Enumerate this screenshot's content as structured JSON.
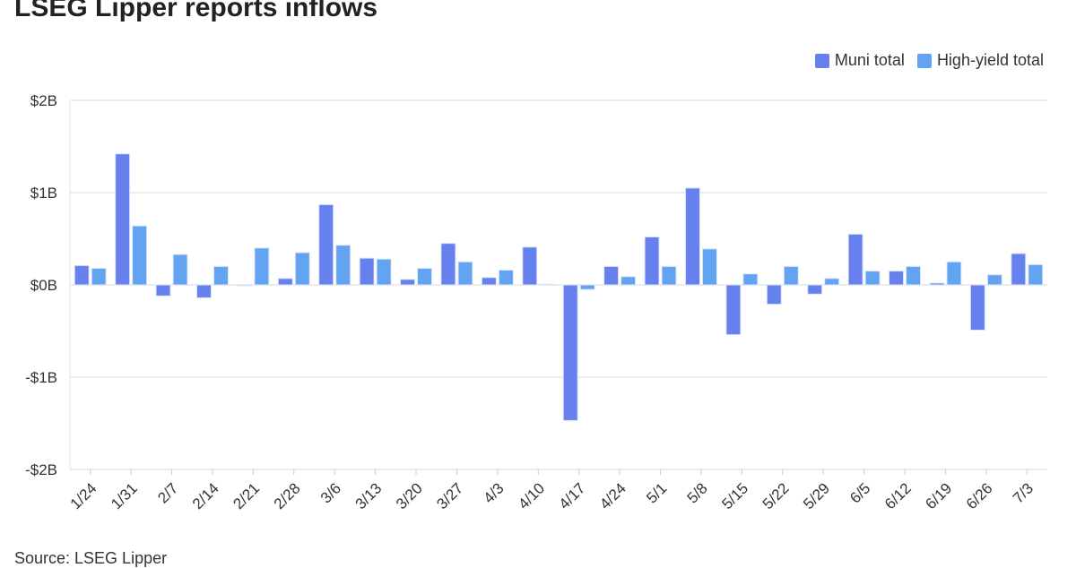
{
  "chart_data": {
    "type": "bar",
    "title": "LSEG Lipper reports inflows",
    "source": "Source: LSEG Lipper",
    "xlabel": "",
    "ylabel": "",
    "ylim": [
      -2,
      2
    ],
    "yticks": [
      2,
      1,
      0,
      -1,
      -2
    ],
    "ytick_labels": [
      "$2B",
      "$1B",
      "$0B",
      "-$1B",
      "-$2B"
    ],
    "legend_position": "top-right",
    "grid": true,
    "categories": [
      "1/24",
      "1/31",
      "2/7",
      "2/14",
      "2/21",
      "2/28",
      "3/6",
      "3/13",
      "3/20",
      "3/27",
      "4/3",
      "4/10",
      "4/17",
      "4/24",
      "5/1",
      "5/8",
      "5/15",
      "5/22",
      "5/29",
      "6/5",
      "6/12",
      "6/19",
      "6/26",
      "7/3"
    ],
    "series": [
      {
        "name": "Muni total",
        "color": "#6680ee",
        "values": [
          0.21,
          1.42,
          -0.12,
          -0.14,
          -0.01,
          0.07,
          0.87,
          0.29,
          0.06,
          0.45,
          0.08,
          0.41,
          -1.47,
          0.2,
          0.52,
          1.05,
          -0.54,
          -0.21,
          -0.1,
          0.55,
          0.15,
          0.02,
          -0.49,
          0.34
        ]
      },
      {
        "name": "High-yield total",
        "color": "#63a4f2",
        "values": [
          0.18,
          0.64,
          0.33,
          0.2,
          0.4,
          0.35,
          0.43,
          0.28,
          0.18,
          0.25,
          0.16,
          0.01,
          -0.05,
          0.09,
          0.2,
          0.39,
          0.12,
          0.2,
          0.07,
          0.15,
          0.2,
          0.25,
          0.11,
          0.22
        ]
      }
    ]
  }
}
